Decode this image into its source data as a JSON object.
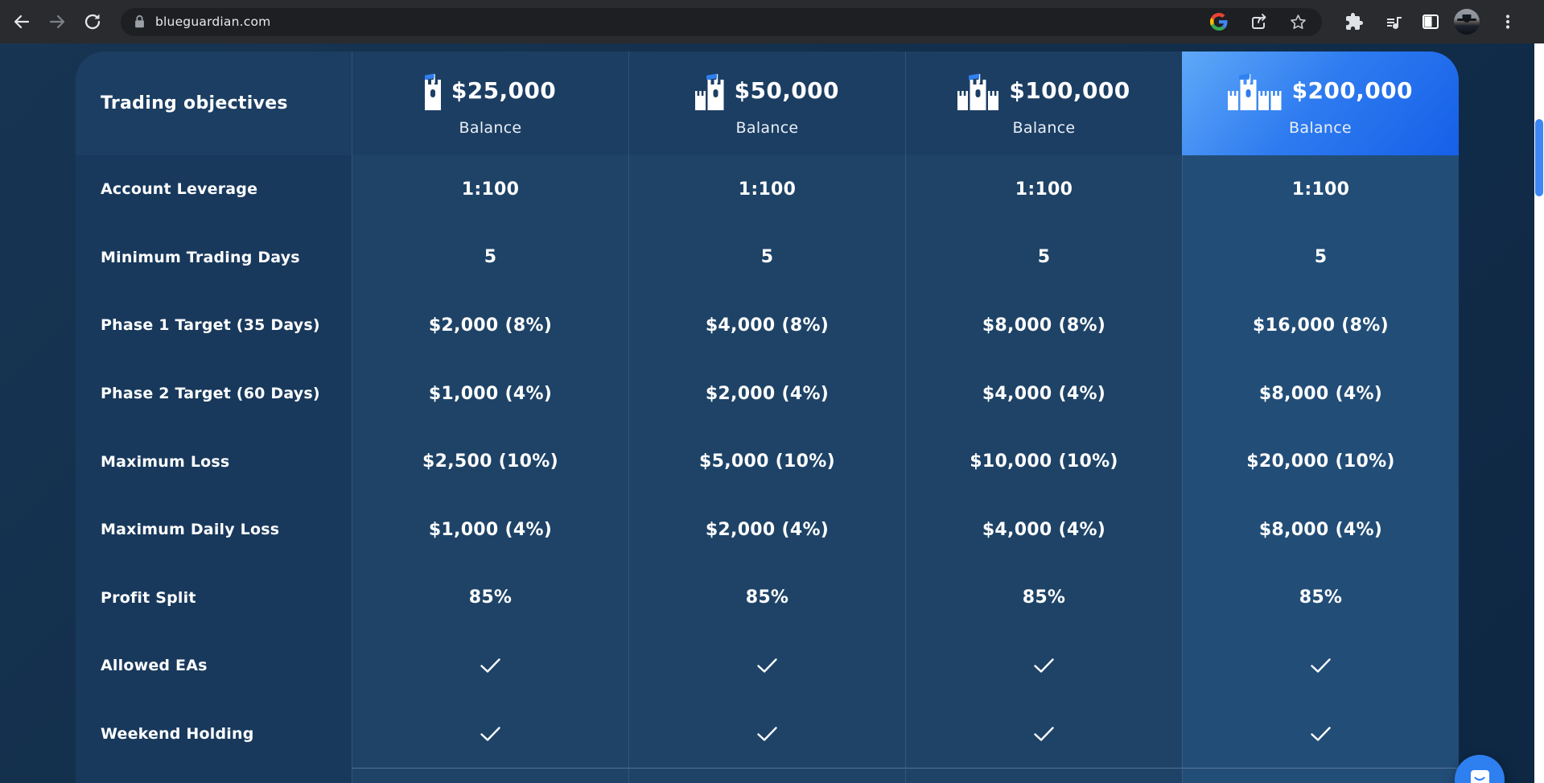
{
  "browser": {
    "url": "blueguardian.com"
  },
  "table": {
    "corner_label": "Trading objectives",
    "columns": [
      {
        "amount": "$25,000",
        "sub": "Balance",
        "tier": 1,
        "highlighted": false
      },
      {
        "amount": "$50,000",
        "sub": "Balance",
        "tier": 2,
        "highlighted": false
      },
      {
        "amount": "$100,000",
        "sub": "Balance",
        "tier": 3,
        "highlighted": false
      },
      {
        "amount": "$200,000",
        "sub": "Balance",
        "tier": 4,
        "highlighted": true
      }
    ],
    "rows": [
      {
        "label": "Account Leverage",
        "values": [
          "1:100",
          "1:100",
          "1:100",
          "1:100"
        ]
      },
      {
        "label": "Minimum Trading Days",
        "values": [
          "5",
          "5",
          "5",
          "5"
        ]
      },
      {
        "label": "Phase 1 Target (35 Days)",
        "values": [
          "$2,000 (8%)",
          "$4,000 (8%)",
          "$8,000 (8%)",
          "$16,000 (8%)"
        ]
      },
      {
        "label": "Phase 2 Target (60 Days)",
        "values": [
          "$1,000 (4%)",
          "$2,000 (4%)",
          "$4,000 (4%)",
          "$8,000 (4%)"
        ]
      },
      {
        "label": "Maximum Loss",
        "values": [
          "$2,500 (10%)",
          "$5,000 (10%)",
          "$10,000 (10%)",
          "$20,000 (10%)"
        ]
      },
      {
        "label": "Maximum Daily Loss",
        "values": [
          "$1,000 (4%)",
          "$2,000 (4%)",
          "$4,000 (4%)",
          "$8,000 (4%)"
        ]
      },
      {
        "label": "Profit Split",
        "values": [
          "85%",
          "85%",
          "85%",
          "85%"
        ]
      },
      {
        "label": "Allowed EAs",
        "values": [
          "check",
          "check",
          "check",
          "check"
        ]
      },
      {
        "label": "Weekend Holding",
        "values": [
          "check",
          "check",
          "check",
          "check"
        ]
      }
    ]
  },
  "icons": {
    "check": "check-icon",
    "castle": "castle-icon"
  },
  "colors": {
    "accent": "#2e7ff0",
    "flag_blue": "#2f80f0",
    "head_bg": "#1c3e63",
    "label_bg": "#18395c",
    "cell_bg": "#1e4367",
    "highlight_cell_bg": "#224d77",
    "highlight_gradient_start": "#5fa9f8",
    "highlight_gradient_end": "#1560e8",
    "scroll_thumb": "#3e86f3"
  }
}
